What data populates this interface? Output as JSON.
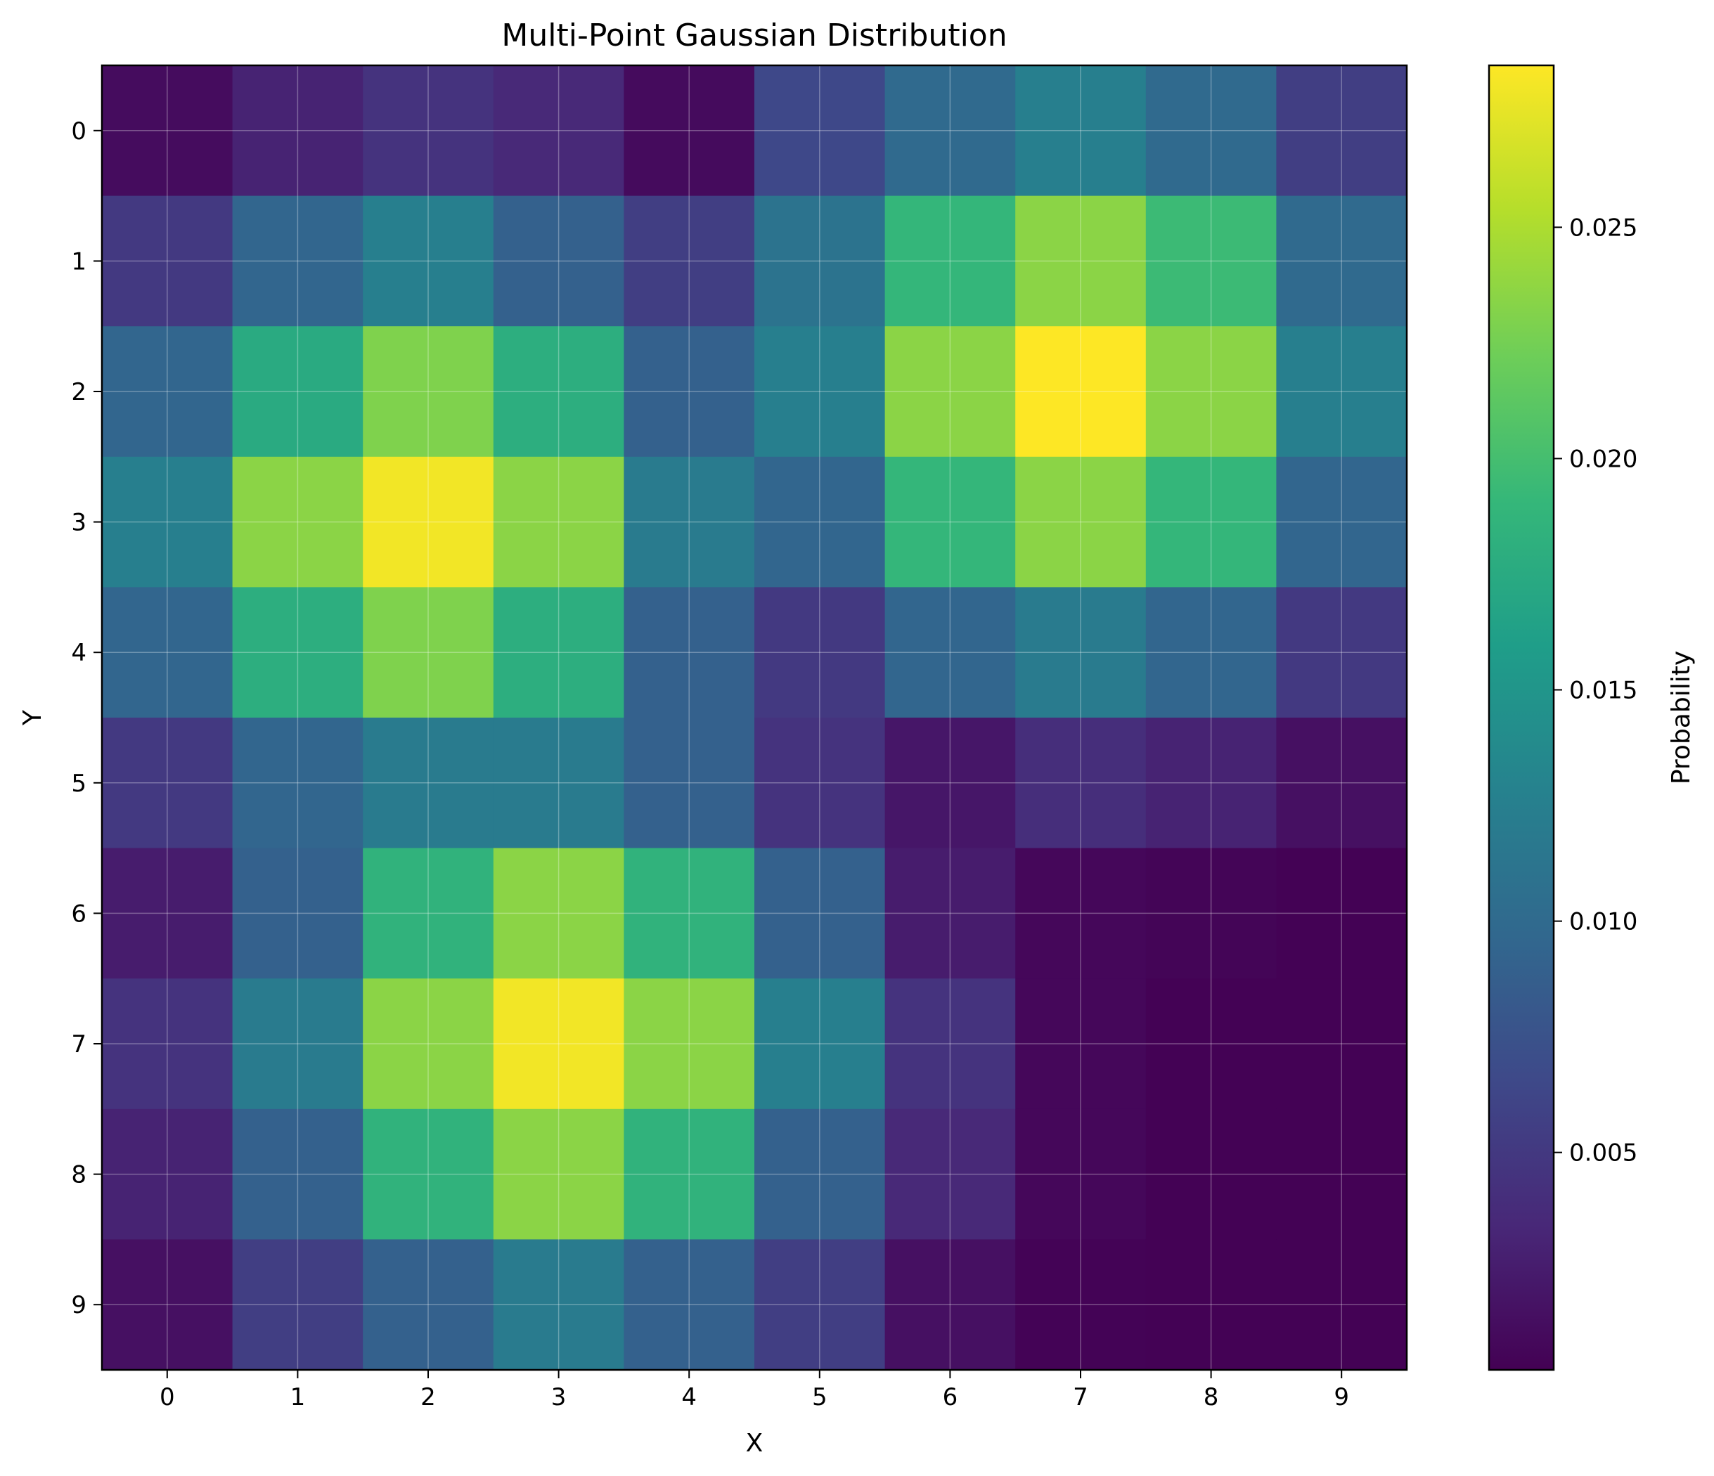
{
  "chart_data": {
    "type": "heatmap",
    "title": "Multi-Point Gaussian Distribution",
    "xlabel": "X",
    "ylabel": "Y",
    "x": [
      0,
      1,
      2,
      3,
      4,
      5,
      6,
      7,
      8,
      9
    ],
    "y": [
      0,
      1,
      2,
      3,
      4,
      5,
      6,
      7,
      8,
      9
    ],
    "colormap": "viridis",
    "grid": true,
    "colorbar": {
      "label": "Probability",
      "range": [
        0.0003,
        0.0285
      ],
      "ticks": [
        0.005,
        0.01,
        0.015,
        0.02,
        0.025
      ],
      "tick_labels": [
        "0.005",
        "0.010",
        "0.015",
        "0.020",
        "0.025"
      ]
    },
    "values": [
      [
        0.0012,
        0.003,
        0.0045,
        0.0035,
        0.0011,
        0.0065,
        0.01,
        0.0125,
        0.01,
        0.0055
      ],
      [
        0.005,
        0.0095,
        0.0125,
        0.009,
        0.0055,
        0.011,
        0.019,
        0.0235,
        0.0195,
        0.01
      ],
      [
        0.0095,
        0.0175,
        0.023,
        0.018,
        0.009,
        0.0125,
        0.0235,
        0.0285,
        0.0235,
        0.0125
      ],
      [
        0.0125,
        0.0235,
        0.028,
        0.0235,
        0.012,
        0.0095,
        0.019,
        0.0235,
        0.019,
        0.0095
      ],
      [
        0.0095,
        0.018,
        0.023,
        0.018,
        0.009,
        0.005,
        0.0095,
        0.012,
        0.0095,
        0.005
      ],
      [
        0.005,
        0.0095,
        0.012,
        0.012,
        0.009,
        0.0045,
        0.002,
        0.004,
        0.003,
        0.0015
      ],
      [
        0.0025,
        0.009,
        0.0185,
        0.0235,
        0.0185,
        0.009,
        0.0025,
        0.0008,
        0.0006,
        0.0004
      ],
      [
        0.0045,
        0.012,
        0.0235,
        0.028,
        0.0235,
        0.0125,
        0.0045,
        0.0008,
        0.0004,
        0.0004
      ],
      [
        0.003,
        0.009,
        0.0185,
        0.0235,
        0.0185,
        0.009,
        0.0035,
        0.0008,
        0.0004,
        0.0004
      ],
      [
        0.0015,
        0.0055,
        0.009,
        0.012,
        0.009,
        0.0055,
        0.0015,
        0.0005,
        0.0004,
        0.0004
      ]
    ]
  }
}
